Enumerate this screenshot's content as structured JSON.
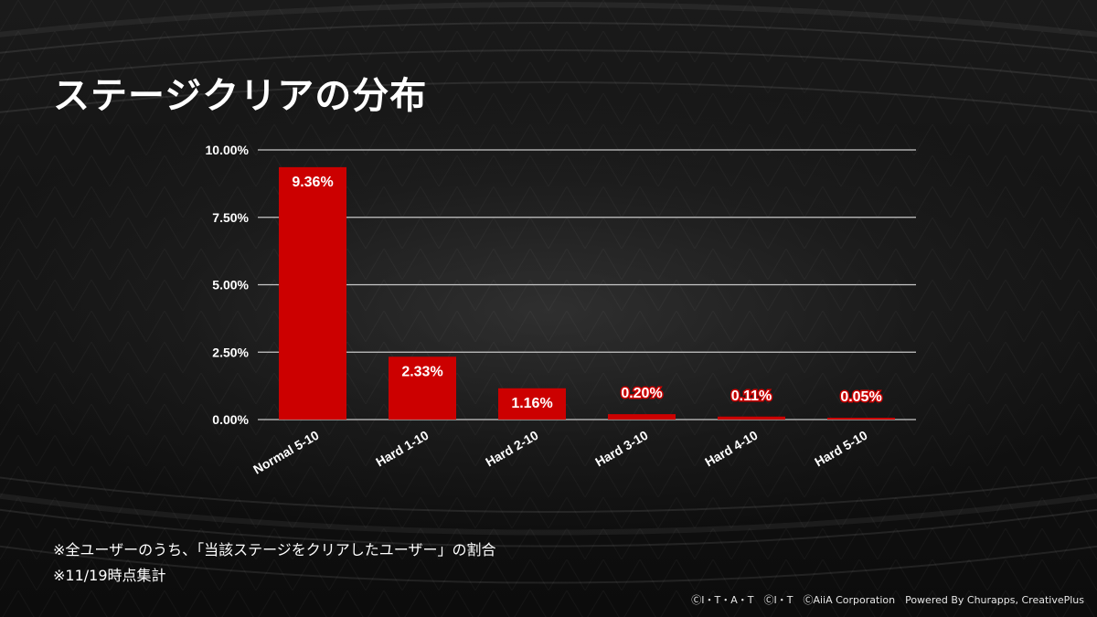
{
  "title": "ステージクリアの分布",
  "notes": [
    "※全ユーザーのうち、「当該ステージをクリアしたユーザー」の割合",
    "※11/19時点集計"
  ],
  "copyright": "ⒸI・T・A・T　ⒸI・T　ⒸAiiA Corporation　Powered By Churapps, CreativePlus",
  "colors": {
    "bar": "#cc0000",
    "grid": "#c8c8c8",
    "background": "#141414"
  },
  "chart_data": {
    "type": "bar",
    "title": "ステージクリアの分布",
    "xlabel": "",
    "ylabel": "",
    "categories": [
      "Normal 5-10",
      "Hard 1-10",
      "Hard 2-10",
      "Hard 3-10",
      "Hard 4-10",
      "Hard 5-10"
    ],
    "values": [
      9.36,
      2.33,
      1.16,
      0.2,
      0.11,
      0.05
    ],
    "value_labels": [
      "9.36%",
      "2.33%",
      "1.16%",
      "0.20%",
      "0.11%",
      "0.05%"
    ],
    "ylim": [
      0,
      10
    ],
    "yticks": [
      0,
      2.5,
      5,
      7.5,
      10
    ],
    "ytick_labels": [
      "0.00%",
      "2.50%",
      "5.00%",
      "7.50%",
      "10.00%"
    ],
    "grid": true,
    "legend": "none"
  }
}
